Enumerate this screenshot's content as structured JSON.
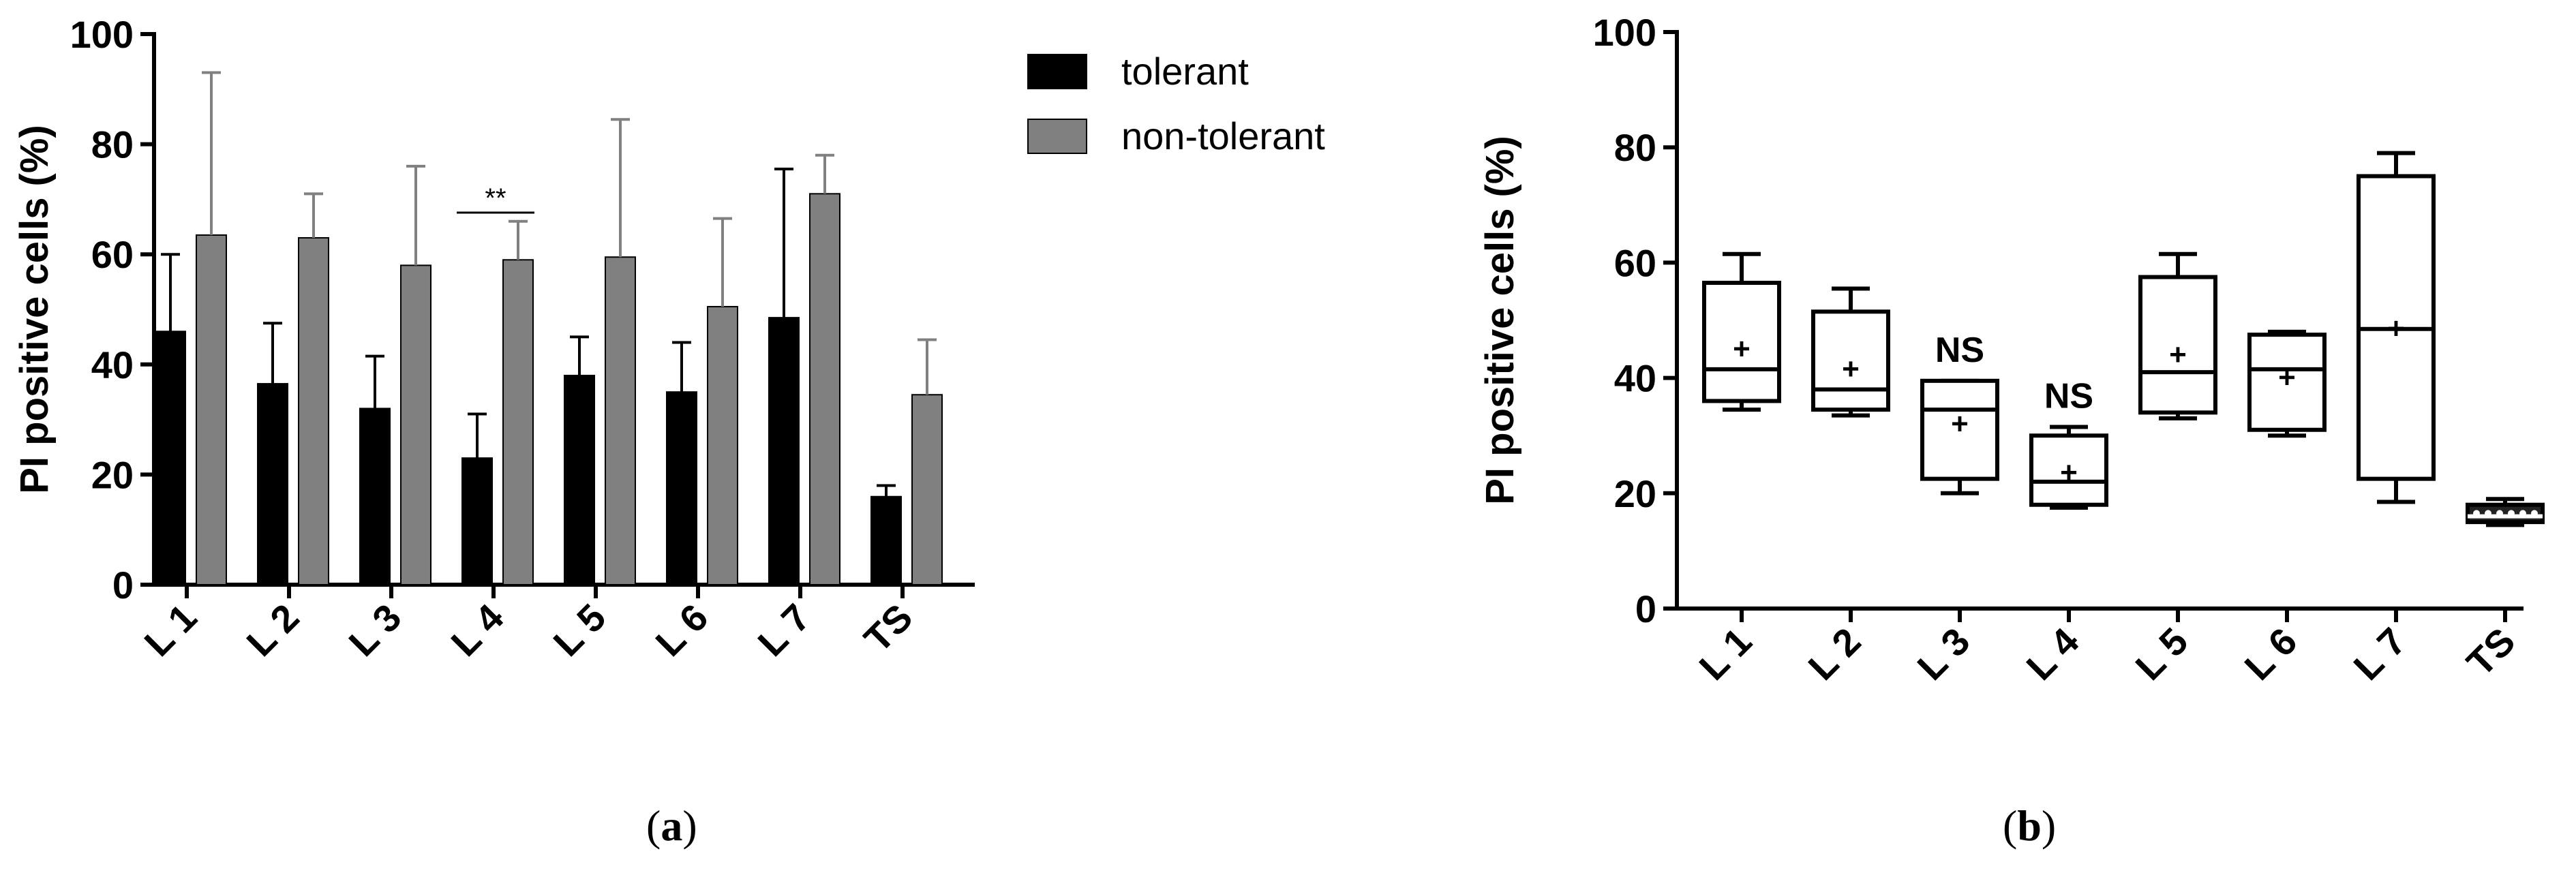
{
  "chart_data": [
    {
      "type": "bar",
      "panel": "(a)",
      "panel_letter": "a",
      "ylabel": "PI positive cells (%)",
      "xlabel": "",
      "ylim": [
        0,
        100
      ],
      "yticks": [
        0,
        20,
        40,
        60,
        80,
        100
      ],
      "grid": false,
      "legend_position": "top-right",
      "categories": [
        "L 1",
        "L 2",
        "L 3",
        "L 4",
        "L 5",
        "L 6",
        "L 7",
        "TS"
      ],
      "series": [
        {
          "name": "tolerant",
          "color": "#000000",
          "values": [
            46,
            36.5,
            32,
            23,
            38,
            35,
            48.5,
            16
          ],
          "error_upper": [
            60,
            47.5,
            41.5,
            31,
            45,
            44,
            75.5,
            18
          ]
        },
        {
          "name": "non-tolerant",
          "color": "#808080",
          "values": [
            63.5,
            63,
            58,
            59,
            59.5,
            50.5,
            71,
            34.5
          ],
          "error_upper": [
            93,
            71,
            76,
            66,
            84.5,
            66.5,
            78,
            44.5
          ]
        }
      ],
      "annotations": [
        {
          "category": "L 4",
          "text": "**"
        }
      ]
    },
    {
      "type": "box",
      "panel": "(b)",
      "panel_letter": "b",
      "ylabel": "PI positive cells (%)",
      "xlabel": "",
      "ylim": [
        0,
        100
      ],
      "yticks": [
        0,
        20,
        40,
        60,
        80,
        100
      ],
      "grid": false,
      "categories": [
        "L 1",
        "L 2",
        "L 3",
        "L 4",
        "L 5",
        "L 6",
        "L 7",
        "TS"
      ],
      "boxes": [
        {
          "min": 34.5,
          "q1": 36,
          "median": 41.5,
          "q3": 56.5,
          "max": 61.5,
          "mean": 45,
          "annotation": ""
        },
        {
          "min": 33.5,
          "q1": 34.5,
          "median": 38,
          "q3": 51.5,
          "max": 55.5,
          "mean": 41.5,
          "annotation": ""
        },
        {
          "min": 20,
          "q1": 22.5,
          "median": 34.5,
          "q3": 39.5,
          "max": 39.5,
          "mean": 32,
          "annotation": "NS"
        },
        {
          "min": 17.5,
          "q1": 18,
          "median": 22,
          "q3": 30,
          "max": 31.5,
          "mean": 23.5,
          "annotation": "NS"
        },
        {
          "min": 33,
          "q1": 34,
          "median": 41,
          "q3": 57.5,
          "max": 61.5,
          "mean": 44,
          "annotation": ""
        },
        {
          "min": 30,
          "q1": 31,
          "median": 41.5,
          "q3": 47.5,
          "max": 48,
          "mean": 40,
          "annotation": ""
        },
        {
          "min": 18.5,
          "q1": 22.5,
          "median": 48.5,
          "q3": 75,
          "max": 79,
          "mean": 48.5,
          "annotation": ""
        },
        {
          "min": 14.5,
          "q1": 15,
          "median": 16,
          "q3": 18,
          "max": 19,
          "mean": 16.5,
          "annotation": ""
        }
      ]
    }
  ]
}
